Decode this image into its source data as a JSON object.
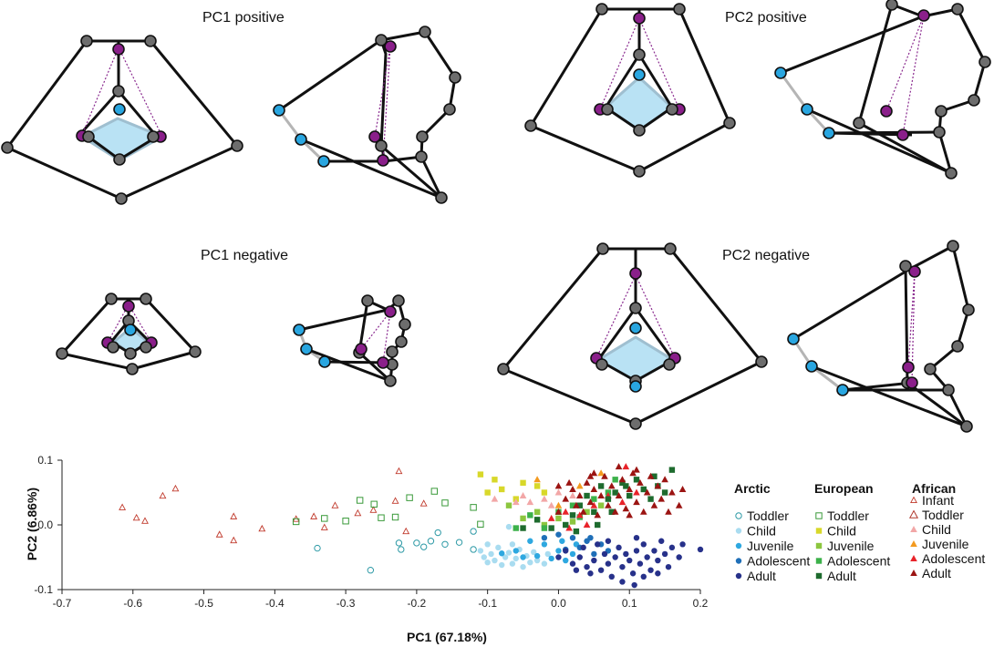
{
  "panels": {
    "pc1_positive": "PC1 positive",
    "pc2_positive": "PC2 positive",
    "pc1_negative": "PC1 negative",
    "pc2_negative": "PC2 negative"
  },
  "legend": {
    "arctic": {
      "title": "Arctic",
      "items": [
        {
          "label": "Toddler",
          "marker": "circle-open",
          "color": "#2e9aa6"
        },
        {
          "label": "Child",
          "marker": "circle",
          "color": "#a9dcf0"
        },
        {
          "label": "Juvenile",
          "marker": "circle",
          "color": "#2ea8e0"
        },
        {
          "label": "Adolescent",
          "marker": "circle",
          "color": "#1f6fb8"
        },
        {
          "label": "Adult",
          "marker": "circle",
          "color": "#27318a"
        }
      ]
    },
    "european": {
      "title": "European",
      "items": [
        {
          "label": "Toddler",
          "marker": "square-open",
          "color": "#3a9a3a"
        },
        {
          "label": "Child",
          "marker": "square",
          "color": "#d8d82a"
        },
        {
          "label": "Juvenile",
          "marker": "square",
          "color": "#8cc63f"
        },
        {
          "label": "Adolescent",
          "marker": "square",
          "color": "#3cb14a"
        },
        {
          "label": "Adult",
          "marker": "square",
          "color": "#1e6b2e"
        }
      ]
    },
    "african": {
      "title": "African",
      "items": [
        {
          "label": "Infant",
          "marker": "triangle-open-small",
          "color": "#c0392b"
        },
        {
          "label": "Toddler",
          "marker": "triangle-open",
          "color": "#b03a2e"
        },
        {
          "label": "Child",
          "marker": "triangle",
          "color": "#f2a7a7"
        },
        {
          "label": "Juvenile",
          "marker": "triangle",
          "color": "#f39a1f"
        },
        {
          "label": "Adolescent",
          "marker": "triangle",
          "color": "#e8232a"
        },
        {
          "label": "Adult",
          "marker": "triangle",
          "color": "#9b1412"
        }
      ]
    }
  },
  "chart_data": {
    "type": "scatter",
    "xlabel": "PC1 (67.18%)",
    "ylabel": "PC2 (6.86%)",
    "xlim": [
      -0.7,
      0.2
    ],
    "ylim": [
      -0.1,
      0.1
    ],
    "xticks": [
      -0.7,
      -0.6,
      -0.5,
      -0.4,
      -0.3,
      -0.2,
      -0.1,
      0.0,
      0.1,
      0.2
    ],
    "xtick_labels": [
      "-0.7",
      "-0.6",
      "-0.5",
      "-0.4",
      "-0.3",
      "-0.2",
      "-0.1",
      "0.0",
      "0.1",
      "0.2"
    ],
    "yticks": [
      0.1,
      0.0,
      -0.1
    ],
    "ytick_labels": [
      "0.1",
      "0.0",
      "-0.1"
    ],
    "series": [
      {
        "name": "African Infant",
        "marker": "triangle-open-small",
        "color": "#c0392b",
        "points": [
          [
            -0.615,
            0.027
          ],
          [
            -0.595,
            0.011
          ],
          [
            -0.583,
            0.006
          ],
          [
            -0.558,
            0.045
          ],
          [
            -0.54,
            0.056
          ],
          [
            -0.478,
            -0.015
          ],
          [
            -0.458,
            0.013
          ],
          [
            -0.458,
            -0.024
          ],
          [
            -0.418,
            -0.006
          ],
          [
            -0.37,
            0.009
          ],
          [
            -0.345,
            0.013
          ],
          [
            -0.33,
            -0.004
          ],
          [
            -0.315,
            0.03
          ],
          [
            -0.283,
            0.018
          ],
          [
            -0.261,
            0.023
          ],
          [
            -0.23,
            0.037
          ],
          [
            -0.225,
            0.083
          ],
          [
            -0.215,
            -0.01
          ],
          [
            -0.19,
            0.033
          ]
        ]
      },
      {
        "name": "Arctic Toddler",
        "marker": "circle-open",
        "color": "#2e9aa6",
        "points": [
          [
            -0.34,
            -0.036
          ],
          [
            -0.265,
            -0.07
          ],
          [
            -0.225,
            -0.028
          ],
          [
            -0.222,
            -0.038
          ],
          [
            -0.2,
            -0.028
          ],
          [
            -0.19,
            -0.034
          ],
          [
            -0.18,
            -0.025
          ],
          [
            -0.17,
            -0.012
          ],
          [
            -0.16,
            -0.03
          ],
          [
            -0.14,
            -0.027
          ],
          [
            -0.12,
            -0.01
          ],
          [
            -0.12,
            -0.038
          ]
        ]
      },
      {
        "name": "European Toddler",
        "marker": "square-open",
        "color": "#3a9a3a",
        "points": [
          [
            -0.37,
            0.005
          ],
          [
            -0.33,
            0.01
          ],
          [
            -0.3,
            0.006
          ],
          [
            -0.28,
            0.038
          ],
          [
            -0.26,
            0.032
          ],
          [
            -0.25,
            0.011
          ],
          [
            -0.23,
            0.012
          ],
          [
            -0.21,
            0.042
          ],
          [
            -0.175,
            0.052
          ],
          [
            -0.16,
            0.034
          ],
          [
            -0.12,
            0.027
          ],
          [
            -0.11,
            0.001
          ]
        ]
      },
      {
        "name": "Arctic Child",
        "marker": "circle",
        "color": "#a9dcf0",
        "points": [
          [
            -0.11,
            -0.04
          ],
          [
            -0.105,
            -0.05
          ],
          [
            -0.1,
            -0.058
          ],
          [
            -0.095,
            -0.045
          ],
          [
            -0.09,
            -0.055
          ],
          [
            -0.085,
            -0.035
          ],
          [
            -0.08,
            -0.062
          ],
          [
            -0.075,
            -0.05
          ],
          [
            -0.07,
            -0.043
          ],
          [
            -0.065,
            -0.06
          ],
          [
            -0.06,
            -0.052
          ],
          [
            -0.055,
            -0.038
          ],
          [
            -0.05,
            -0.065
          ],
          [
            -0.045,
            -0.048
          ],
          [
            -0.04,
            -0.058
          ],
          [
            -0.035,
            -0.042
          ],
          [
            -0.03,
            -0.055
          ],
          [
            -0.1,
            -0.03
          ],
          [
            -0.065,
            -0.03
          ],
          [
            -0.02,
            -0.06
          ],
          [
            -0.015,
            -0.045
          ],
          [
            -0.07,
            -0.003
          ]
        ]
      },
      {
        "name": "Arctic Juvenile",
        "marker": "circle",
        "color": "#2ea8e0",
        "points": [
          [
            -0.08,
            -0.044
          ],
          [
            -0.06,
            -0.04
          ],
          [
            -0.05,
            -0.05
          ],
          [
            -0.03,
            -0.048
          ],
          [
            -0.02,
            -0.03
          ],
          [
            -0.01,
            -0.052
          ],
          [
            0.0,
            -0.04
          ],
          [
            0.01,
            -0.055
          ],
          [
            0.02,
            -0.045
          ],
          [
            -0.04,
            -0.025
          ],
          [
            0.005,
            -0.025
          ],
          [
            0.025,
            -0.03
          ]
        ]
      },
      {
        "name": "Arctic Adolescent",
        "marker": "circle",
        "color": "#1f6fb8",
        "points": [
          [
            -0.02,
            -0.02
          ],
          [
            0.0,
            -0.015
          ],
          [
            0.02,
            -0.02
          ],
          [
            0.03,
            -0.035
          ],
          [
            0.04,
            -0.025
          ],
          [
            0.05,
            -0.045
          ],
          [
            0.06,
            -0.03
          ],
          [
            0.07,
            -0.04
          ],
          [
            0.01,
            -0.038
          ],
          [
            0.045,
            -0.02
          ]
        ]
      },
      {
        "name": "Arctic Adult",
        "marker": "circle",
        "color": "#27318a",
        "points": [
          [
            0.0,
            -0.05
          ],
          [
            0.01,
            -0.04
          ],
          [
            0.02,
            -0.06
          ],
          [
            0.03,
            -0.05
          ],
          [
            0.035,
            -0.035
          ],
          [
            0.04,
            -0.065
          ],
          [
            0.05,
            -0.055
          ],
          [
            0.055,
            -0.03
          ],
          [
            0.06,
            -0.07
          ],
          [
            0.065,
            -0.045
          ],
          [
            0.07,
            -0.06
          ],
          [
            0.075,
            -0.08
          ],
          [
            0.08,
            -0.05
          ],
          [
            0.085,
            -0.035
          ],
          [
            0.09,
            -0.065
          ],
          [
            0.095,
            -0.045
          ],
          [
            0.1,
            -0.055
          ],
          [
            0.105,
            -0.075
          ],
          [
            0.11,
            -0.04
          ],
          [
            0.115,
            -0.06
          ],
          [
            0.12,
            -0.03
          ],
          [
            0.125,
            -0.05
          ],
          [
            0.13,
            -0.07
          ],
          [
            0.135,
            -0.04
          ],
          [
            0.14,
            -0.055
          ],
          [
            0.145,
            -0.025
          ],
          [
            0.15,
            -0.045
          ],
          [
            0.155,
            -0.065
          ],
          [
            0.16,
            -0.035
          ],
          [
            0.17,
            -0.05
          ],
          [
            0.175,
            -0.03
          ],
          [
            0.2,
            -0.038
          ],
          [
            0.107,
            -0.093
          ],
          [
            0.09,
            -0.088
          ],
          [
            0.045,
            -0.075
          ],
          [
            0.025,
            -0.07
          ],
          [
            0.11,
            -0.02
          ],
          [
            0.07,
            -0.025
          ],
          [
            0.12,
            -0.08
          ],
          [
            0.14,
            -0.075
          ]
        ]
      },
      {
        "name": "European Child",
        "marker": "square",
        "color": "#d8d82a",
        "points": [
          [
            -0.11,
            0.078
          ],
          [
            -0.09,
            0.07
          ],
          [
            -0.1,
            0.05
          ],
          [
            -0.08,
            0.055
          ],
          [
            -0.06,
            0.04
          ],
          [
            -0.05,
            0.065
          ],
          [
            -0.03,
            0.06
          ],
          [
            -0.02,
            0.05
          ]
        ]
      },
      {
        "name": "African Child",
        "marker": "triangle",
        "color": "#f2a7a7",
        "points": [
          [
            -0.09,
            0.04
          ],
          [
            -0.06,
            0.035
          ],
          [
            -0.05,
            0.045
          ],
          [
            -0.04,
            0.035
          ],
          [
            -0.02,
            0.04
          ],
          [
            -0.01,
            0.03
          ],
          [
            0.0,
            0.05
          ],
          [
            0.02,
            0.045
          ]
        ]
      },
      {
        "name": "European Juvenile",
        "marker": "square",
        "color": "#8cc63f",
        "points": [
          [
            -0.07,
            0.03
          ],
          [
            -0.05,
            0.01
          ],
          [
            -0.03,
            0.02
          ],
          [
            -0.02,
            0.0
          ],
          [
            0.0,
            0.01
          ],
          [
            0.02,
            0.005
          ],
          [
            0.04,
            0.02
          ],
          [
            0.06,
            0.03
          ]
        ]
      },
      {
        "name": "European Adolescent",
        "marker": "square",
        "color": "#3cb14a",
        "points": [
          [
            -0.06,
            -0.005
          ],
          [
            -0.04,
            0.015
          ],
          [
            -0.02,
            -0.005
          ],
          [
            0.0,
            0.02
          ],
          [
            0.02,
            0.03
          ],
          [
            0.03,
            0.012
          ],
          [
            0.05,
            0.04
          ],
          [
            0.07,
            0.05
          ],
          [
            0.08,
            0.07
          ]
        ]
      },
      {
        "name": "African Juvenile",
        "marker": "triangle",
        "color": "#f39a1f",
        "points": [
          [
            -0.03,
            0.07
          ],
          [
            0.0,
            0.03
          ],
          [
            0.03,
            0.06
          ],
          [
            0.06,
            0.08
          ]
        ]
      },
      {
        "name": "African Adolescent",
        "marker": "triangle",
        "color": "#e8232a",
        "points": [
          [
            -0.01,
            0.01
          ],
          [
            0.01,
            0.02
          ],
          [
            0.03,
            0.015
          ],
          [
            0.05,
            0.03
          ],
          [
            0.07,
            0.045
          ],
          [
            0.09,
            0.035
          ],
          [
            0.11,
            0.05
          ],
          [
            0.04,
            0.0
          ],
          [
            0.015,
            -0.005
          ],
          [
            0.095,
            0.09
          ]
        ]
      },
      {
        "name": "European Adult",
        "marker": "square",
        "color": "#1e6b2e",
        "points": [
          [
            -0.05,
            -0.005
          ],
          [
            -0.03,
            0.008
          ],
          [
            -0.01,
            -0.005
          ],
          [
            0.01,
            0.0
          ],
          [
            0.02,
            0.015
          ],
          [
            0.03,
            0.03
          ],
          [
            0.04,
            0.045
          ],
          [
            0.05,
            0.02
          ],
          [
            0.06,
            0.06
          ],
          [
            0.07,
            0.04
          ],
          [
            0.08,
            0.05
          ],
          [
            0.09,
            0.065
          ],
          [
            0.1,
            0.045
          ],
          [
            0.11,
            0.07
          ],
          [
            0.12,
            0.055
          ],
          [
            0.13,
            0.04
          ],
          [
            0.14,
            0.06
          ],
          [
            0.15,
            0.05
          ],
          [
            0.16,
            0.085
          ],
          [
            0.135,
            0.075
          ],
          [
            0.095,
            0.06
          ],
          [
            0.025,
            -0.01
          ],
          [
            0.055,
            0.0
          ],
          [
            0.075,
            0.02
          ]
        ]
      },
      {
        "name": "African Adult",
        "marker": "triangle",
        "color": "#9b1412",
        "points": [
          [
            0.0,
            0.02
          ],
          [
            0.01,
            0.04
          ],
          [
            0.02,
            0.055
          ],
          [
            0.025,
            0.03
          ],
          [
            0.03,
            0.045
          ],
          [
            0.035,
            0.02
          ],
          [
            0.04,
            0.065
          ],
          [
            0.045,
            0.035
          ],
          [
            0.05,
            0.055
          ],
          [
            0.055,
            0.015
          ],
          [
            0.06,
            0.045
          ],
          [
            0.065,
            0.075
          ],
          [
            0.07,
            0.03
          ],
          [
            0.075,
            0.06
          ],
          [
            0.08,
            0.02
          ],
          [
            0.085,
            0.045
          ],
          [
            0.09,
            0.07
          ],
          [
            0.095,
            0.025
          ],
          [
            0.1,
            0.055
          ],
          [
            0.105,
            0.08
          ],
          [
            0.11,
            0.035
          ],
          [
            0.115,
            0.065
          ],
          [
            0.12,
            0.02
          ],
          [
            0.125,
            0.05
          ],
          [
            0.13,
            0.075
          ],
          [
            0.135,
            0.03
          ],
          [
            0.14,
            0.06
          ],
          [
            0.145,
            0.04
          ],
          [
            0.15,
            0.07
          ],
          [
            0.155,
            0.02
          ],
          [
            0.16,
            0.05
          ],
          [
            0.17,
            0.03
          ],
          [
            0.175,
            0.055
          ],
          [
            0.05,
            0.08
          ],
          [
            0.085,
            0.09
          ],
          [
            0.045,
            0.075
          ],
          [
            0.015,
            0.065
          ],
          [
            0.0,
            0.06
          ],
          [
            0.1,
            0.015
          ],
          [
            0.11,
            0.085
          ]
        ]
      }
    ]
  }
}
